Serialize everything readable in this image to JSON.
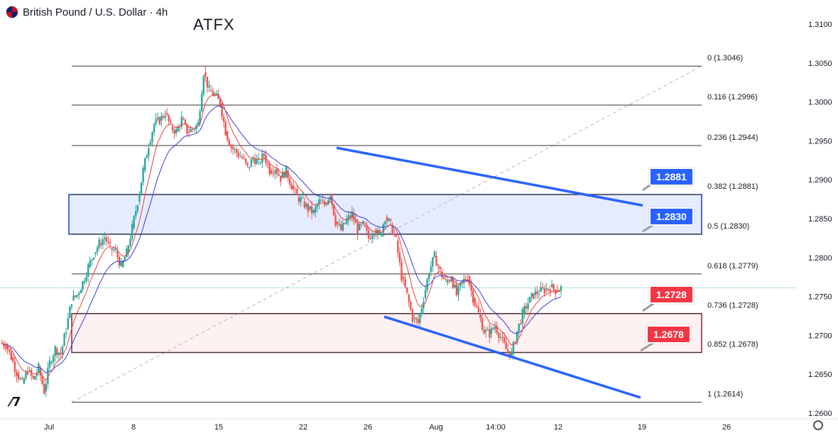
{
  "header": {
    "symbol_title": "British Pound / U.S. Dollar · 4h",
    "brand": "ATFX"
  },
  "colors": {
    "up": "#26a69a",
    "down": "#ef5350",
    "ema_fast": "#e8413b",
    "ema_slow": "#3b3bd6",
    "channel": "#2962ff",
    "blue_zone": "#2962ff",
    "red_zone": "#a01c3a",
    "tag_blue": "#2962ff",
    "tag_red": "#f23645"
  },
  "tags": {
    "t1": "1.2881",
    "t2": "1.2830",
    "t3": "1.2728",
    "t4": "1.2678"
  },
  "chart_data": {
    "type": "candlestick",
    "y_ticks": [
      1.31,
      1.305,
      1.3,
      1.295,
      1.29,
      1.285,
      1.28,
      1.275,
      1.27,
      1.265,
      1.26
    ],
    "y_tick_labels": [
      "1.3100",
      "1.3050",
      "1.3000",
      "1.2950",
      "1.2900",
      "1.2850",
      "1.2800",
      "1.2750",
      "1.2700",
      "1.2650",
      "1.2600"
    ],
    "x_labels": [
      "Jul",
      "8",
      "15",
      "22",
      "26",
      "Aug",
      "14:00",
      "12",
      "19",
      "26"
    ],
    "fibonacci": [
      {
        "ratio": "0",
        "price": 1.3046,
        "label": "0 (1.3046)"
      },
      {
        "ratio": "0.116",
        "price": 1.2996,
        "label": "0.116 (1.2996)"
      },
      {
        "ratio": "0.236",
        "price": 1.2944,
        "label": "0.236 (1.2944)"
      },
      {
        "ratio": "0.382",
        "price": 1.2881,
        "label": "0.382 (1.2881)"
      },
      {
        "ratio": "0.5",
        "price": 1.283,
        "label": "0.5 (1.2830)"
      },
      {
        "ratio": "0.618",
        "price": 1.2779,
        "label": "0.618 (1.2779)"
      },
      {
        "ratio": "0.736",
        "price": 1.2728,
        "label": "0.736 (1.2728)"
      },
      {
        "ratio": "0.852",
        "price": 1.2678,
        "label": "0.852 (1.2678)"
      },
      {
        "ratio": "1",
        "price": 1.2614,
        "label": "1 (1.2614)"
      }
    ],
    "zones": [
      {
        "name": "resistance",
        "top": 1.2881,
        "bottom": 1.283
      },
      {
        "name": "support",
        "top": 1.2728,
        "bottom": 1.2678
      }
    ],
    "last_price": 1.2761,
    "close_path": [
      1.2688,
      1.2672,
      1.2652,
      1.2638,
      1.2655,
      1.2643,
      1.2658,
      1.2628,
      1.2665,
      1.2683,
      1.2676,
      1.2708,
      1.2745,
      1.2752,
      1.2768,
      1.2788,
      1.2805,
      1.2818,
      1.2826,
      1.2812,
      1.2808,
      1.2788,
      1.2806,
      1.2838,
      1.2872,
      1.2912,
      1.2945,
      1.2972,
      1.2976,
      1.2986,
      1.2968,
      1.2962,
      1.2978,
      1.2962,
      1.2965,
      1.2972,
      1.3038,
      1.3015,
      1.3009,
      1.2998,
      1.2962,
      1.2942,
      1.2935,
      1.2928,
      1.2915,
      1.2928,
      1.2922,
      1.2932,
      1.2912,
      1.2915,
      1.2902,
      1.2912,
      1.2892,
      1.2878,
      1.2872,
      1.2862,
      1.2858,
      1.2872,
      1.2868,
      1.2882,
      1.2846,
      1.2835,
      1.2848,
      1.2856,
      1.2835,
      1.2842,
      1.2825,
      1.2836,
      1.2828,
      1.2852,
      1.2842,
      1.2822,
      1.2775,
      1.2752,
      1.2722,
      1.2716,
      1.2748,
      1.2782,
      1.2802,
      1.2782,
      1.2768,
      1.2775,
      1.2752,
      1.2768,
      1.2776,
      1.2748,
      1.2728,
      1.2705,
      1.2702,
      1.2712,
      1.2698,
      1.2682,
      1.2676,
      1.2705,
      1.2728,
      1.2742,
      1.2752,
      1.2756,
      1.2758,
      1.2762,
      1.2758,
      1.2761
    ],
    "ema_fast_end": 1.2746,
    "ema_slow_end": 1.2724,
    "channel_upper": [
      {
        "x_index": 41,
        "price": 1.2941
      },
      {
        "x_index": 74,
        "price": 1.2867
      }
    ],
    "channel_lower": [
      {
        "x_index": 44,
        "price": 1.2724
      },
      {
        "x_index": 75,
        "price": 1.262
      }
    ]
  }
}
